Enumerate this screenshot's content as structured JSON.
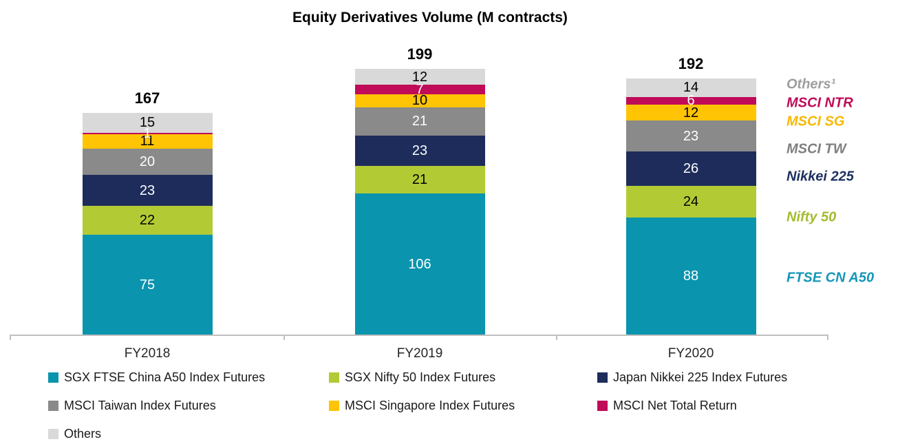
{
  "chart_data": {
    "type": "bar",
    "subtype": "stacked-column",
    "title": "Equity Derivatives Volume (M contracts)",
    "categories": [
      "FY2018",
      "FY2019",
      "FY2020"
    ],
    "totals": [
      167,
      199,
      192
    ],
    "series": [
      {
        "name": "SGX FTSE China A50 Index Futures",
        "axis_label": "FTSE CN A50",
        "color": "#0A94AE",
        "value_text_color": "#FFFFFF",
        "axis_label_color": "#1697B8",
        "values": [
          75,
          106,
          88
        ]
      },
      {
        "name": "SGX Nifty 50 Index Futures",
        "axis_label": "Nifty 50",
        "color": "#B2CB35",
        "value_text_color": "#000000",
        "axis_label_color": "#A2BC2D",
        "values": [
          22,
          21,
          24
        ]
      },
      {
        "name": "Japan Nikkei 225 Index Futures",
        "axis_label": "Nikkei 225",
        "color": "#1D2C5B",
        "value_text_color": "#FFFFFF",
        "axis_label_color": "#1D3160",
        "values": [
          23,
          23,
          26
        ]
      },
      {
        "name": "MSCI Taiwan Index Futures",
        "axis_label": "MSCI TW",
        "color": "#8A8A8A",
        "value_text_color": "#FFFFFF",
        "axis_label_color": "#7F7F7F",
        "values": [
          20,
          21,
          23
        ]
      },
      {
        "name": "MSCI Singapore Index Futures",
        "axis_label": "MSCI SG",
        "color": "#FFC403",
        "value_text_color": "#000000",
        "axis_label_color": "#F8B800",
        "values": [
          11,
          10,
          12
        ]
      },
      {
        "name": "MSCI Net Total Return",
        "axis_label": "MSCI  NTR",
        "color": "#C00B58",
        "value_text_color": "#FFFFFF",
        "axis_label_color": "#C00B58",
        "values": [
          1,
          7,
          6
        ]
      },
      {
        "name": "Others",
        "axis_label": "Others¹",
        "color": "#D9D9D9",
        "value_text_color": "#000000",
        "axis_label_color": "#9E9E9E",
        "values": [
          15,
          12,
          14
        ]
      }
    ],
    "legend_position": "bottom",
    "legend_labels": [
      "SGX FTSE China A50 Index Futures",
      "SGX Nifty 50 Index Futures",
      "Japan Nikkei 225 Index Futures",
      "MSCI Taiwan Index Futures",
      "MSCI Singapore Index Futures",
      "MSCI Net Total Return",
      "Others"
    ],
    "grid": "off",
    "axis_line_color": "#BFBFBF"
  }
}
